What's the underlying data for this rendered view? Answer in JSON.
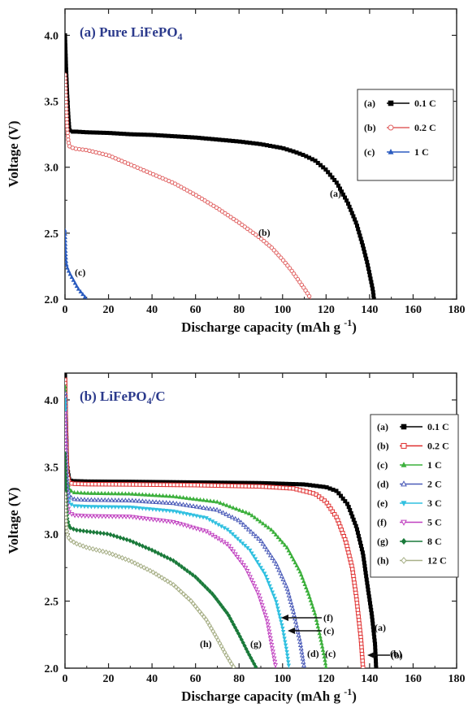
{
  "chart_data": [
    {
      "type": "line",
      "title": "(a) Pure LiFePO",
      "title_sub": "4",
      "title_color": "#2b3a8c",
      "xlabel": "Discharge capacity (mAh g",
      "xlabel_sup": "-1",
      "xlabel_tail": ")",
      "ylabel": "Voltage (V)",
      "xlim": [
        0,
        180
      ],
      "ylim": [
        2.0,
        4.2
      ],
      "xticks": [
        "0",
        "20",
        "40",
        "60",
        "80",
        "100",
        "120",
        "140",
        "160",
        "180"
      ],
      "yticks": [
        "2.0",
        "2.5",
        "3.0",
        "3.5",
        "4.0"
      ],
      "grid": false,
      "legend_position": "right",
      "series": [
        {
          "name": "0.1 C",
          "key": "(a)",
          "label": "(a)",
          "color": "#000000",
          "marker": "square-filled",
          "x": [
            0,
            0.5,
            1,
            1.5,
            2,
            3,
            5,
            10,
            20,
            30,
            40,
            50,
            60,
            70,
            80,
            90,
            100,
            105,
            110,
            115,
            120,
            125,
            130,
            134,
            137,
            139,
            140.5,
            141.5,
            142
          ],
          "y": [
            4.0,
            3.75,
            3.55,
            3.4,
            3.28,
            3.27,
            3.27,
            3.265,
            3.26,
            3.25,
            3.245,
            3.235,
            3.225,
            3.21,
            3.195,
            3.175,
            3.145,
            3.12,
            3.09,
            3.05,
            2.98,
            2.88,
            2.73,
            2.57,
            2.4,
            2.27,
            2.15,
            2.07,
            2.0
          ]
        },
        {
          "name": "0.2 C",
          "key": "(b)",
          "label": "(b)",
          "color": "#e06060",
          "marker": "circle-open",
          "x": [
            0,
            0.5,
            1,
            1.5,
            2,
            3,
            5,
            10,
            20,
            30,
            40,
            50,
            60,
            70,
            80,
            85,
            90,
            95,
            100,
            104,
            107,
            110,
            112,
            113
          ],
          "y": [
            3.7,
            3.5,
            3.3,
            3.2,
            3.16,
            3.15,
            3.14,
            3.13,
            3.09,
            3.02,
            2.95,
            2.88,
            2.79,
            2.69,
            2.58,
            2.52,
            2.46,
            2.39,
            2.3,
            2.22,
            2.15,
            2.08,
            2.03,
            2.0
          ]
        },
        {
          "name": "1 C",
          "key": "(c)",
          "label": "(c)",
          "color": "#2b5cc0",
          "marker": "triangle-filled",
          "x": [
            0,
            0.3,
            0.6,
            1,
            2,
            3,
            4,
            5,
            6,
            7,
            8,
            9,
            10
          ],
          "y": [
            2.52,
            2.35,
            2.27,
            2.24,
            2.2,
            2.17,
            2.14,
            2.11,
            2.08,
            2.06,
            2.04,
            2.02,
            2.0
          ]
        }
      ]
    },
    {
      "type": "line",
      "title": "(b) LiFePO",
      "title_sub": "4",
      "title_tail": "/C",
      "title_color": "#2b3a8c",
      "xlabel": "Discharge capacity (mAh g",
      "xlabel_sup": "-1",
      "xlabel_tail": ")",
      "ylabel": "Voltage (V)",
      "xlim": [
        0,
        180
      ],
      "ylim": [
        2.0,
        4.2
      ],
      "xticks": [
        "0",
        "20",
        "40",
        "60",
        "80",
        "100",
        "120",
        "140",
        "160",
        "180"
      ],
      "yticks": [
        "2.0",
        "2.5",
        "3.0",
        "3.5",
        "4.0"
      ],
      "grid": false,
      "legend_position": "right",
      "series": [
        {
          "name": "0.1 C",
          "key": "(a)",
          "label": "(a)",
          "color": "#000000",
          "marker": "square-filled",
          "x": [
            0,
            0.5,
            1,
            2,
            4,
            10,
            30,
            60,
            90,
            110,
            120,
            125,
            130,
            134,
            137,
            139,
            141,
            142.5,
            143
          ],
          "y": [
            4.2,
            3.8,
            3.5,
            3.4,
            3.395,
            3.392,
            3.39,
            3.385,
            3.38,
            3.37,
            3.35,
            3.32,
            3.22,
            3.05,
            2.85,
            2.62,
            2.4,
            2.18,
            2.0
          ]
        },
        {
          "name": "0.2 C",
          "key": "(b)",
          "label": "(b)",
          "color": "#e03030",
          "marker": "square-open",
          "x": [
            0,
            0.5,
            1,
            2,
            4,
            10,
            30,
            60,
            90,
            105,
            115,
            120,
            125,
            129,
            132,
            134,
            136,
            137
          ],
          "y": [
            4.15,
            3.7,
            3.45,
            3.38,
            3.375,
            3.372,
            3.37,
            3.365,
            3.355,
            3.34,
            3.3,
            3.24,
            3.12,
            2.95,
            2.75,
            2.52,
            2.22,
            2.0
          ]
        },
        {
          "name": "1 C",
          "key": "(c)",
          "label": "(c)",
          "color": "#3cb03c",
          "marker": "triangle-filled",
          "x": [
            0,
            0.5,
            1,
            2,
            4,
            10,
            30,
            50,
            70,
            85,
            95,
            102,
            108,
            112,
            115,
            117.5,
            119.5,
            120
          ],
          "y": [
            4.1,
            3.6,
            3.4,
            3.33,
            3.31,
            3.305,
            3.3,
            3.28,
            3.24,
            3.15,
            3.03,
            2.9,
            2.72,
            2.55,
            2.4,
            2.22,
            2.06,
            2.0
          ]
        },
        {
          "name": "2 C",
          "key": "(d)",
          "label": "(d)",
          "color": "#4a5ab8",
          "marker": "triangle-open",
          "x": [
            0,
            0.5,
            1,
            2,
            4,
            10,
            30,
            50,
            70,
            80,
            90,
            97,
            102,
            105,
            108,
            110
          ],
          "y": [
            4.05,
            3.55,
            3.35,
            3.28,
            3.26,
            3.255,
            3.25,
            3.23,
            3.18,
            3.1,
            2.95,
            2.78,
            2.6,
            2.42,
            2.2,
            2.0
          ]
        },
        {
          "name": "3 C",
          "key": "(e)",
          "label": "(e)",
          "color": "#30c0e0",
          "marker": "triangle-down-filled",
          "x": [
            0,
            0.5,
            1,
            2,
            4,
            10,
            30,
            50,
            65,
            75,
            85,
            92,
            97,
            100,
            102,
            103
          ],
          "y": [
            4.0,
            3.5,
            3.3,
            3.23,
            3.21,
            3.205,
            3.2,
            3.17,
            3.12,
            3.03,
            2.88,
            2.7,
            2.5,
            2.3,
            2.12,
            2.0
          ]
        },
        {
          "name": "5 C",
          "key": "(f)",
          "label": "(f)",
          "color": "#c040c0",
          "marker": "triangle-down-open",
          "x": [
            0,
            0.5,
            1,
            2,
            4,
            10,
            30,
            50,
            65,
            75,
            83,
            89,
            93,
            95,
            97
          ],
          "y": [
            3.9,
            3.4,
            3.22,
            3.16,
            3.14,
            3.135,
            3.13,
            3.09,
            3.02,
            2.92,
            2.75,
            2.55,
            2.35,
            2.17,
            2.0
          ]
        },
        {
          "name": "8 C",
          "key": "(g)",
          "label": "(g)",
          "color": "#1a7a3a",
          "marker": "diamond-filled",
          "x": [
            0,
            0.5,
            1,
            2,
            5,
            10,
            20,
            30,
            40,
            50,
            60,
            68,
            75,
            80,
            84,
            87,
            88
          ],
          "y": [
            3.6,
            3.3,
            3.12,
            3.05,
            3.03,
            3.02,
            3.0,
            2.95,
            2.88,
            2.8,
            2.68,
            2.55,
            2.4,
            2.25,
            2.12,
            2.03,
            2.0
          ]
        },
        {
          "name": "12 C",
          "key": "(h)",
          "label": "(h)",
          "color": "#a8b088",
          "marker": "diamond-open",
          "x": [
            0,
            0.5,
            1,
            2,
            5,
            10,
            20,
            30,
            40,
            50,
            58,
            65,
            70,
            74,
            77,
            78
          ],
          "y": [
            3.3,
            3.1,
            3.0,
            2.96,
            2.93,
            2.9,
            2.86,
            2.8,
            2.72,
            2.62,
            2.5,
            2.36,
            2.22,
            2.1,
            2.02,
            2.0
          ]
        }
      ]
    }
  ]
}
